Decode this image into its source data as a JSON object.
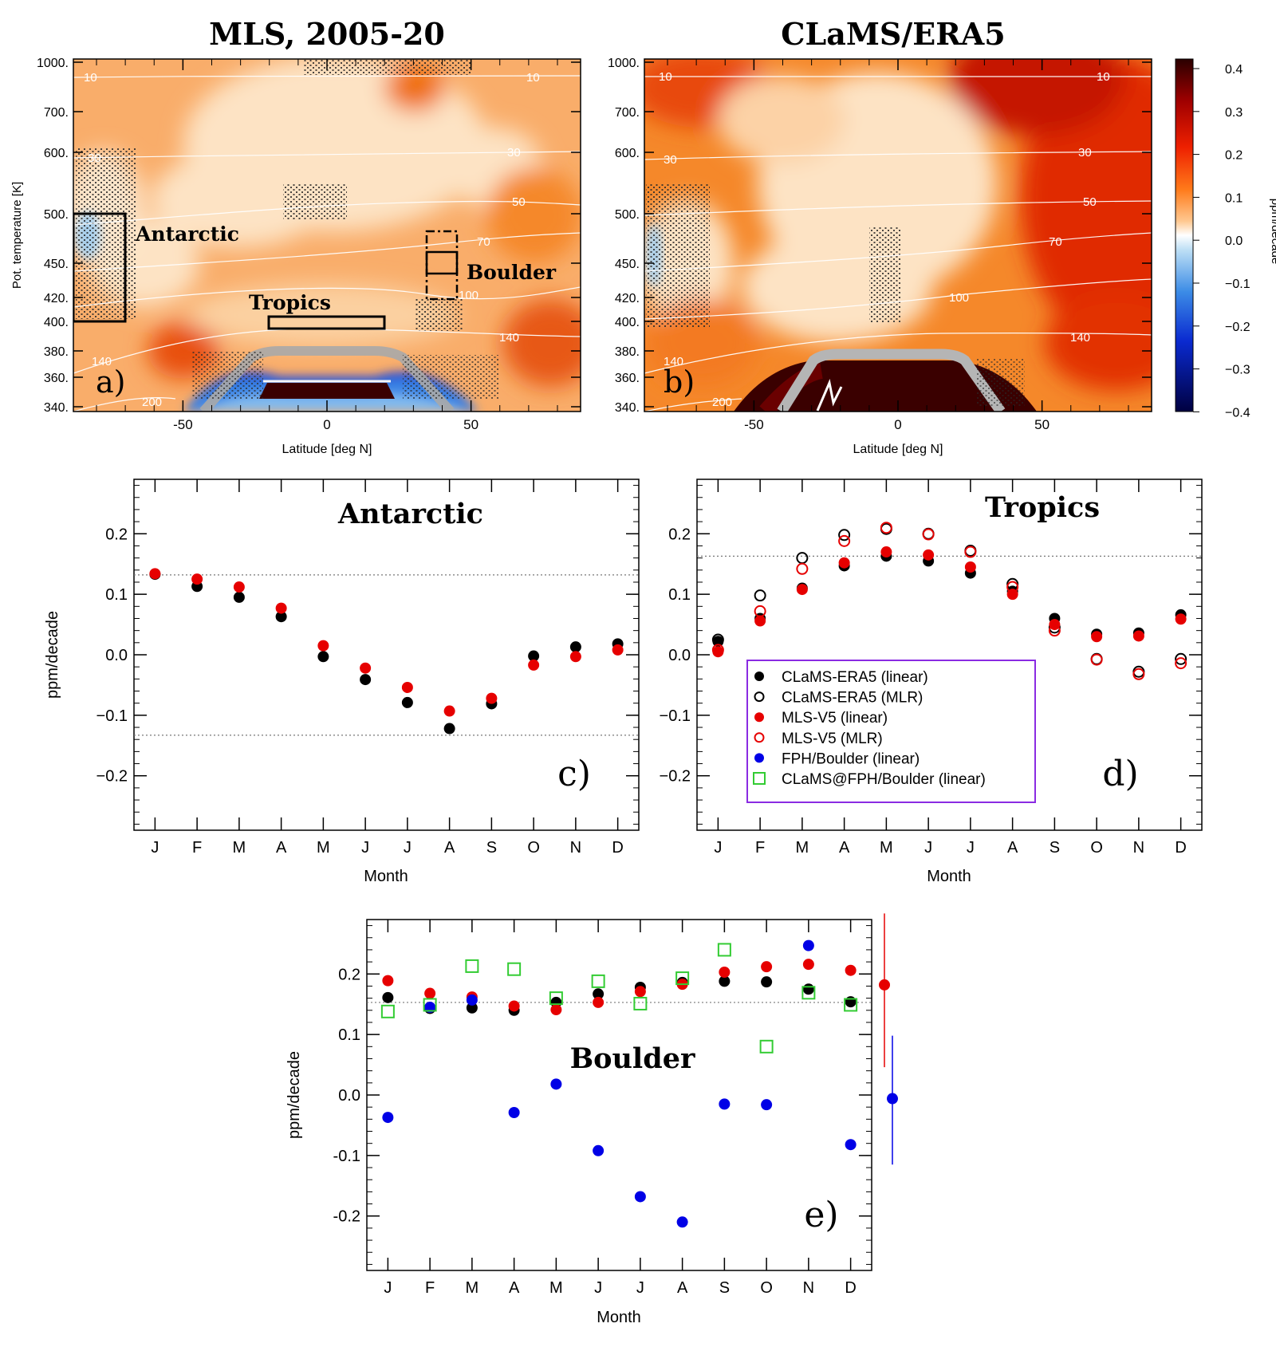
{
  "panels": {
    "a": {
      "title": "MLS, 2005-20",
      "label": "a)",
      "xlabel": "Latitude [deg N]",
      "ylabel": "Pot. temperature [K]",
      "region_labels": {
        "antarctic": "Antarctic",
        "tropics": "Tropics",
        "boulder": "Boulder"
      }
    },
    "b": {
      "title": "CLaMS/ERA5",
      "label": "b)",
      "xlabel": "Latitude [deg N]"
    },
    "colorbar": {
      "label": "ppm/decade",
      "ticks": [
        "0.4",
        "0.3",
        "0.2",
        "0.1",
        "0.0",
        "−0.1",
        "−0.2",
        "−0.3",
        "−0.4"
      ]
    },
    "theta_ticks": [
      "1000.",
      "700.",
      "600.",
      "500.",
      "450.",
      "420.",
      "400.",
      "380.",
      "360.",
      "340."
    ],
    "lat_ticks": [
      "-50",
      "0",
      "50"
    ],
    "contour_labels": [
      "10",
      "30",
      "50",
      "70",
      "100",
      "140",
      "200"
    ]
  },
  "legend": {
    "items": [
      {
        "label": "CLaMS-ERA5 (linear)",
        "marker": "filled-circle",
        "color": "#000000"
      },
      {
        "label": "CLaMS-ERA5 (MLR)",
        "marker": "open-circle",
        "color": "#000000"
      },
      {
        "label": "MLS-V5 (linear)",
        "marker": "filled-circle",
        "color": "#e60000"
      },
      {
        "label": "MLS-V5 (MLR)",
        "marker": "open-circle",
        "color": "#e60000"
      },
      {
        "label": "FPH/Boulder (linear)",
        "marker": "filled-circle",
        "color": "#0000e6"
      },
      {
        "label": "CLaMS@FPH/Boulder (linear)",
        "marker": "open-square",
        "color": "#33cc33"
      }
    ],
    "border_color": "#8a2be2"
  },
  "chart_data": [
    {
      "type": "scatter",
      "panel": "c",
      "title": "Antarctic",
      "label": "c)",
      "categories": [
        "J",
        "F",
        "M",
        "A",
        "M",
        "J",
        "J",
        "A",
        "S",
        "O",
        "N",
        "D"
      ],
      "xlabel": "Month",
      "ylabel": "ppm/decade",
      "ylim": [
        -0.29,
        0.29
      ],
      "yticks": [
        "0.2",
        "0.1",
        "0.0",
        "−0.1",
        "−0.2"
      ],
      "reference_lines": [
        0.132,
        -0.133
      ],
      "series": [
        {
          "name": "CLaMS-ERA5 (linear)",
          "values": [
            0.133,
            0.113,
            0.095,
            0.063,
            -0.003,
            -0.041,
            -0.079,
            -0.122,
            -0.081,
            -0.002,
            0.013,
            0.018
          ]
        },
        {
          "name": "MLS-V5 (linear)",
          "values": [
            0.134,
            0.125,
            0.112,
            0.077,
            0.015,
            -0.022,
            -0.054,
            -0.093,
            -0.072,
            -0.017,
            -0.003,
            0.008
          ]
        }
      ]
    },
    {
      "type": "scatter",
      "panel": "d",
      "title": "Tropics",
      "label": "d)",
      "categories": [
        "J",
        "F",
        "M",
        "A",
        "M",
        "J",
        "J",
        "A",
        "S",
        "O",
        "N",
        "D"
      ],
      "xlabel": "Month",
      "ylim": [
        -0.29,
        0.29
      ],
      "yticks": [
        "0.2",
        "0.1",
        "0.0",
        "−0.1",
        "−0.2"
      ],
      "reference_lines": [
        0.163
      ],
      "series": [
        {
          "name": "CLaMS-ERA5 (linear)",
          "values": [
            0.022,
            0.06,
            0.11,
            0.147,
            0.163,
            0.155,
            0.135,
            0.105,
            0.06,
            0.034,
            0.036,
            0.066
          ]
        },
        {
          "name": "CLaMS-ERA5 (MLR)",
          "values": [
            0.025,
            0.098,
            0.16,
            0.198,
            0.208,
            0.2,
            0.172,
            0.117,
            0.045,
            -0.007,
            -0.028,
            -0.007
          ]
        },
        {
          "name": "MLS-V5 (linear)",
          "values": [
            0.005,
            0.056,
            0.108,
            0.152,
            0.17,
            0.165,
            0.145,
            0.1,
            0.05,
            0.03,
            0.031,
            0.059
          ]
        },
        {
          "name": "MLS-V5 (MLR)",
          "values": [
            0.008,
            0.072,
            0.142,
            0.188,
            0.21,
            0.199,
            0.17,
            0.112,
            0.04,
            -0.008,
            -0.032,
            -0.014
          ]
        }
      ]
    },
    {
      "type": "scatter",
      "panel": "e",
      "title": "Boulder",
      "label": "e)",
      "categories": [
        "J",
        "F",
        "M",
        "A",
        "M",
        "J",
        "J",
        "A",
        "S",
        "O",
        "N",
        "D"
      ],
      "xlabel": "Month",
      "ylabel": "ppm/decade",
      "ylim": [
        -0.29,
        0.29
      ],
      "yticks": [
        "0.2",
        "0.1",
        "0.0",
        "-0.1",
        "-0.2"
      ],
      "reference_lines": [
        0.153
      ],
      "series": [
        {
          "name": "CLaMS-ERA5 (linear)",
          "values": [
            0.161,
            0.143,
            0.144,
            0.14,
            0.153,
            0.167,
            0.178,
            0.186,
            0.188,
            0.187,
            0.175,
            0.154
          ]
        },
        {
          "name": "MLS-V5 (linear)",
          "values": [
            0.189,
            0.168,
            0.162,
            0.147,
            0.141,
            0.153,
            0.171,
            0.183,
            0.203,
            0.212,
            0.216,
            0.206
          ]
        },
        {
          "name": "FPH/Boulder (linear)",
          "values": [
            -0.037,
            0.145,
            0.157,
            -0.029,
            0.018,
            -0.092,
            -0.168,
            -0.21,
            -0.015,
            -0.016,
            0.247,
            -0.082
          ]
        },
        {
          "name": "CLaMS@FPH/Boulder (linear)",
          "values": [
            0.138,
            0.149,
            0.213,
            0.208,
            0.16,
            0.188,
            0.151,
            0.193,
            0.24,
            0.08,
            0.169,
            0.149
          ]
        }
      ],
      "annual_means": [
        {
          "name": "MLS-V5 (linear)",
          "value": 0.182,
          "range": [
            0.046,
            0.3
          ]
        },
        {
          "name": "FPH/Boulder (linear)",
          "value": -0.006,
          "range": [
            -0.115,
            0.098
          ]
        }
      ]
    }
  ]
}
